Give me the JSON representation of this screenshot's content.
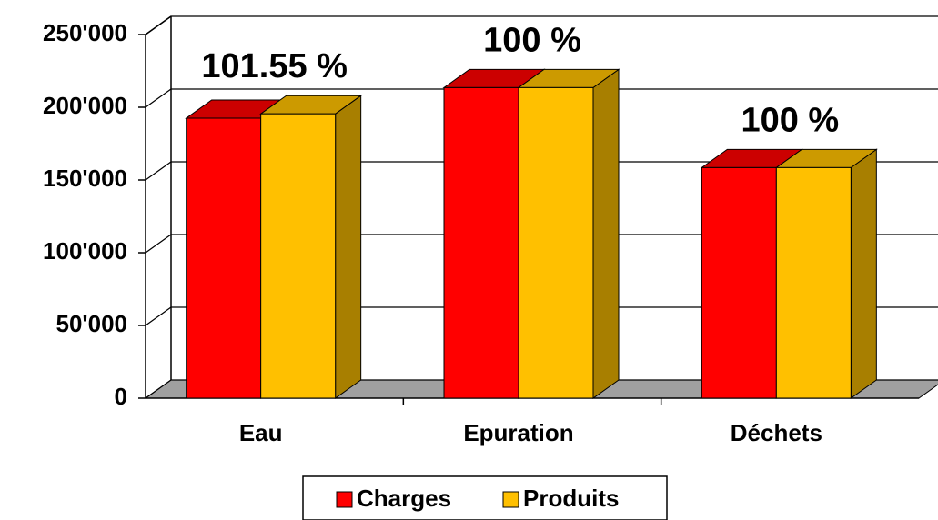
{
  "chart_data": {
    "type": "bar3d",
    "categories": [
      "Eau",
      "Epuration",
      "Déchets"
    ],
    "series": [
      {
        "name": "Charges",
        "color": "#ff0000",
        "values": [
          192500,
          213500,
          158500
        ]
      },
      {
        "name": "Produits",
        "color": "#ffc000",
        "values": [
          195500,
          213500,
          158500
        ]
      }
    ],
    "annotations": [
      "101.55 %",
      "100 %",
      "100 %"
    ],
    "ylim": [
      0,
      250000
    ],
    "yticks": [
      0,
      {
        "value": 50000,
        "label": "50'000"
      },
      {
        "value": 100000,
        "label": "100'000"
      },
      {
        "value": 150000,
        "label": "150'000"
      },
      {
        "value": 200000,
        "label": "200'000"
      },
      {
        "value": 250000,
        "label": "250'000"
      }
    ],
    "grid": true
  }
}
